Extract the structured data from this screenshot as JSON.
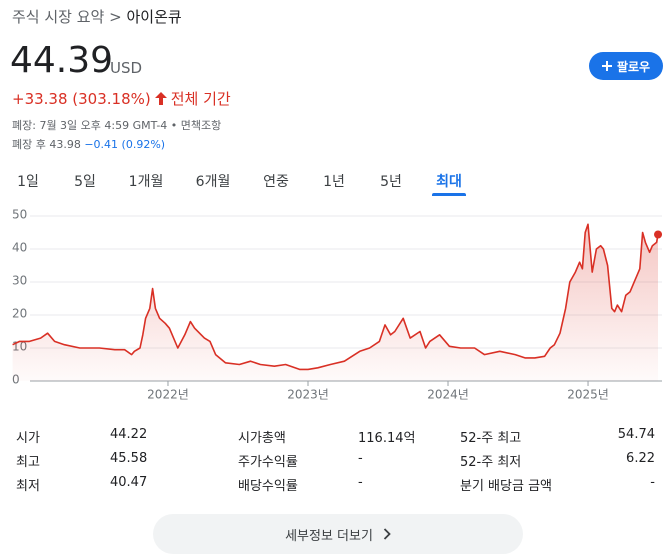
{
  "breadcrumb": {
    "parent": "주식 시장 요약",
    "separator": ">",
    "current": "아이온큐"
  },
  "price": {
    "value": "44.39",
    "currency": "USD"
  },
  "change": {
    "text": "+33.38 (303.18%)",
    "period": "전체 기간"
  },
  "close_note": {
    "time": "폐장: 7월 3일 오후 4:59 GMT-4 •",
    "disclaimer": "면책조항"
  },
  "after_hours": {
    "label": "폐장 후 43.98",
    "change": "−0.41 (0.92%)"
  },
  "follow_button": "팔로우",
  "tabs": [
    "1일",
    "5일",
    "1개월",
    "6개월",
    "연중",
    "1년",
    "5년",
    "최대"
  ],
  "active_tab": 7,
  "chart_data": {
    "type": "line",
    "color": "#d93025",
    "x": [
      2020.89,
      2020.94,
      2021.01,
      2021.09,
      2021.14,
      2021.19,
      2021.26,
      2021.37,
      2021.51,
      2021.62,
      2021.69,
      2021.74,
      2021.76,
      2021.8,
      2021.82,
      2021.84,
      2021.87,
      2021.89,
      2021.91,
      2021.94,
      2021.98,
      2022.01,
      2022.07,
      2022.12,
      2022.16,
      2022.19,
      2022.26,
      2022.3,
      2022.34,
      2022.41,
      2022.51,
      2022.59,
      2022.66,
      2022.76,
      2022.84,
      2022.94,
      2023.0,
      2023.07,
      2023.16,
      2023.26,
      2023.37,
      2023.44,
      2023.51,
      2023.55,
      2023.59,
      2023.62,
      2023.68,
      2023.73,
      2023.8,
      2023.84,
      2023.87,
      2023.94,
      2024.01,
      2024.09,
      2024.19,
      2024.26,
      2024.37,
      2024.48,
      2024.55,
      2024.62,
      2024.69,
      2024.73,
      2024.76,
      2024.8,
      2024.84,
      2024.87,
      2024.91,
      2024.94,
      2024.96,
      2024.98,
      2025.0,
      2025.03,
      2025.06,
      2025.09,
      2025.11,
      2025.14,
      2025.17,
      2025.19,
      2025.21,
      2025.24,
      2025.27,
      2025.3,
      2025.34,
      2025.37,
      2025.39,
      2025.41,
      2025.44,
      2025.46,
      2025.49,
      2025.5
    ],
    "values": [
      11,
      12,
      12,
      13,
      14.5,
      12,
      11,
      10,
      10,
      9.5,
      9.5,
      8,
      9,
      10,
      14,
      19,
      22,
      28,
      22,
      19,
      17.5,
      16,
      10,
      14,
      18,
      16,
      13,
      12,
      8,
      5.5,
      5,
      6,
      5,
      4.5,
      5,
      3.5,
      3.5,
      4,
      5,
      6,
      9,
      10,
      12,
      17,
      14,
      15,
      19,
      13,
      15,
      10,
      12,
      14,
      10.5,
      10,
      10,
      8,
      9,
      8,
      7,
      7,
      7.5,
      10,
      11,
      14.5,
      22,
      30,
      33,
      36,
      34,
      45,
      47.5,
      33,
      40,
      41,
      40,
      35,
      22,
      21,
      23,
      21,
      26,
      27,
      31,
      34,
      45,
      42,
      39,
      41,
      42,
      44.39
    ],
    "xlim": [
      2020.886,
      2025.514
    ],
    "xticks": [
      {
        "value": 2022,
        "label": "2022년"
      },
      {
        "value": 2023,
        "label": "2023년"
      },
      {
        "value": 2024,
        "label": "2024년"
      },
      {
        "value": 2025,
        "label": "2025년"
      }
    ],
    "ylim": [
      0,
      50
    ],
    "yticks": [
      0,
      10,
      20,
      30,
      40,
      50
    ],
    "grid": true
  },
  "stats": [
    [
      {
        "label": "시가",
        "value": "44.22"
      },
      {
        "label": "시가총액",
        "value": "116.14억"
      },
      {
        "label": "52-주 최고",
        "value": "54.74"
      }
    ],
    [
      {
        "label": "최고",
        "value": "45.58"
      },
      {
        "label": "주가수익률",
        "value": "-"
      },
      {
        "label": "52-주 최저",
        "value": "6.22"
      }
    ],
    [
      {
        "label": "최저",
        "value": "40.47"
      },
      {
        "label": "배당수익률",
        "value": "-"
      },
      {
        "label": "분기 배당금 금액",
        "value": "-"
      }
    ]
  ],
  "more_button": "세부정보 더보기"
}
